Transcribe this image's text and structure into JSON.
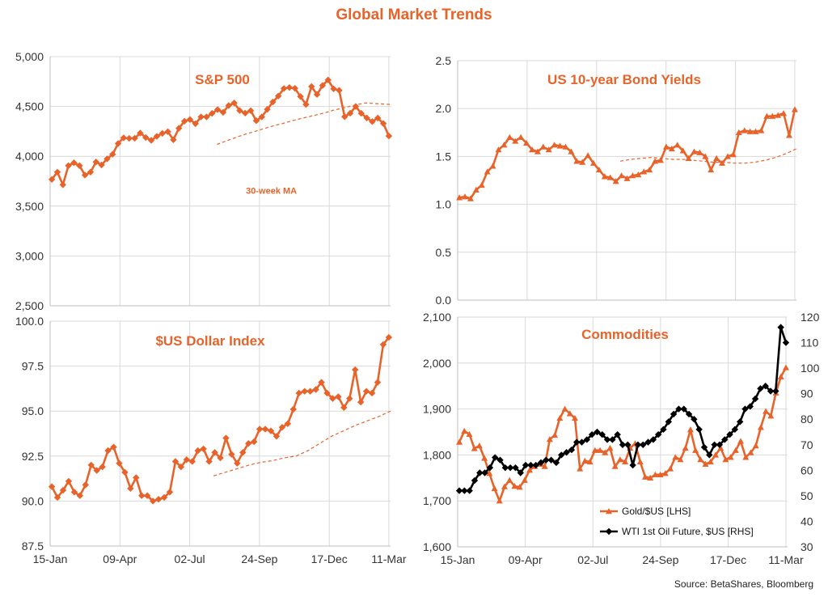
{
  "title": "Global Market Trends",
  "source": "Source: BetaShares, Bloomberg",
  "colors": {
    "accent": "#E8632A",
    "black": "#000000",
    "grid": "#d9d9d9"
  },
  "chart_data": [
    {
      "id": "sp500",
      "type": "line",
      "title": "S&P 500",
      "annotation": "30-week MA",
      "x_ticks": [
        "15-Jan",
        "09-Apr",
        "02-Jul",
        "24-Sep",
        "17-Dec",
        "11-Mar"
      ],
      "ylim": [
        2500,
        5000
      ],
      "y_ticks": [
        2500,
        3000,
        3500,
        4000,
        4500,
        5000
      ],
      "y_tick_labels": [
        "2,500",
        "3,000",
        "3,500",
        "4,000",
        "4,500",
        "5,000"
      ],
      "series": [
        {
          "name": "S&P 500",
          "style": "marker-diamond",
          "values": [
            3768,
            3841,
            3714,
            3906,
            3935,
            3906,
            3811,
            3841,
            3943,
            3913,
            3974,
            4020,
            4128,
            4185,
            4180,
            4181,
            4233,
            4188,
            4160,
            4200,
            4230,
            4247,
            4166,
            4281,
            4352,
            4369,
            4327,
            4395,
            4395,
            4430,
            4468,
            4441,
            4509,
            4535,
            4459,
            4433,
            4458,
            4357,
            4395,
            4471,
            4545,
            4605,
            4680,
            4690,
            4682,
            4600,
            4520,
            4700,
            4620,
            4710,
            4766,
            4677,
            4662,
            4397,
            4432,
            4500,
            4431,
            4385,
            4348,
            4384,
            4329,
            4204
          ]
        },
        {
          "name": "30-week MA",
          "style": "dashed",
          "values": [
            4120,
            4150,
            4180,
            4210,
            4235,
            4260,
            4285,
            4310,
            4330,
            4355,
            4375,
            4395,
            4415,
            4435,
            4460,
            4480,
            4500,
            4520,
            4535,
            4530,
            4525,
            4520
          ]
        }
      ]
    },
    {
      "id": "bond",
      "type": "line",
      "title": "US 10-year Bond Yields",
      "x_ticks": [
        "15-Jan",
        "09-Apr",
        "02-Jul",
        "24-Sep",
        "17-Dec",
        "11-Mar"
      ],
      "ylim": [
        0,
        2.5
      ],
      "y_ticks": [
        0,
        0.5,
        1,
        1.5,
        2,
        2.5
      ],
      "y_tick_labels": [
        "0.0",
        "0.5",
        "1.0",
        "1.5",
        "2.0",
        "2.5"
      ],
      "series": [
        {
          "name": "US 10-year Bond Yields",
          "style": "marker-triangle",
          "values": [
            1.07,
            1.08,
            1.06,
            1.15,
            1.2,
            1.34,
            1.4,
            1.57,
            1.62,
            1.7,
            1.66,
            1.7,
            1.64,
            1.57,
            1.55,
            1.6,
            1.57,
            1.62,
            1.61,
            1.6,
            1.55,
            1.45,
            1.44,
            1.51,
            1.43,
            1.36,
            1.29,
            1.28,
            1.24,
            1.3,
            1.27,
            1.3,
            1.31,
            1.34,
            1.36,
            1.45,
            1.46,
            1.6,
            1.58,
            1.62,
            1.56,
            1.48,
            1.55,
            1.54,
            1.5,
            1.36,
            1.48,
            1.43,
            1.5,
            1.52,
            1.75,
            1.77,
            1.76,
            1.76,
            1.77,
            1.92,
            1.92,
            1.93,
            1.95,
            1.72,
            1.99
          ]
        },
        {
          "name": "30-week MA",
          "style": "dashed",
          "values": [
            1.45,
            1.47,
            1.48,
            1.49,
            1.48,
            1.47,
            1.47,
            1.46,
            1.45,
            1.44,
            1.44,
            1.43,
            1.43,
            1.44,
            1.46,
            1.49,
            1.53,
            1.58
          ]
        }
      ]
    },
    {
      "id": "usd",
      "type": "line",
      "title": "$US Dollar Index",
      "x_ticks": [
        "15-Jan",
        "09-Apr",
        "02-Jul",
        "24-Sep",
        "17-Dec",
        "11-Mar"
      ],
      "ylim": [
        87.5,
        100
      ],
      "y_ticks": [
        87.5,
        90,
        92.5,
        95,
        97.5,
        100
      ],
      "y_tick_labels": [
        "87.5",
        "90.0",
        "92.5",
        "95.0",
        "97.5",
        "100.0"
      ],
      "series": [
        {
          "name": "$US Dollar Index",
          "style": "marker-diamond",
          "values": [
            90.8,
            90.2,
            90.6,
            91.1,
            90.5,
            90.3,
            90.9,
            92.0,
            91.7,
            91.9,
            92.8,
            93.0,
            92.1,
            91.6,
            90.7,
            91.3,
            90.3,
            90.3,
            90.0,
            90.1,
            90.2,
            90.5,
            92.2,
            91.9,
            92.3,
            92.2,
            92.8,
            92.9,
            92.2,
            92.7,
            92.4,
            93.5,
            92.6,
            92.1,
            92.7,
            93.2,
            93.3,
            94.0,
            94.0,
            93.9,
            93.6,
            94.1,
            94.3,
            95.1,
            96.0,
            96.1,
            96.1,
            96.2,
            96.6,
            96.0,
            95.7,
            95.8,
            95.2,
            95.7,
            97.3,
            95.5,
            96.1,
            96.0,
            96.6,
            98.7,
            99.1
          ]
        },
        {
          "name": "30-week MA",
          "style": "dashed",
          "values": [
            91.4,
            91.6,
            91.8,
            92.0,
            92.15,
            92.25,
            92.4,
            92.5,
            92.8,
            93.2,
            93.6,
            93.9,
            94.2,
            94.45,
            94.7,
            95.0
          ]
        }
      ]
    },
    {
      "id": "commodities",
      "type": "line",
      "title": "Commodities",
      "x_ticks": [
        "15-Jan",
        "09-Apr",
        "02-Jul",
        "24-Sep",
        "17-Dec",
        "11-Mar"
      ],
      "ylim": [
        1600,
        2100
      ],
      "y_ticks": [
        1600,
        1700,
        1800,
        1900,
        2000,
        2100
      ],
      "y_tick_labels": [
        "1,600",
        "1,700",
        "1,800",
        "1,900",
        "2,000",
        "2,100"
      ],
      "y2lim": [
        30,
        120
      ],
      "y2_ticks": [
        30,
        40,
        50,
        60,
        70,
        80,
        90,
        100,
        110,
        120
      ],
      "y2_tick_labels": [
        "30",
        "40",
        "50",
        "60",
        "70",
        "80",
        "90",
        "100",
        "110",
        "120"
      ],
      "series": [
        {
          "name": "Gold/$US [LHS]",
          "axis": "left",
          "style": "marker-triangle",
          "values": [
            1828,
            1852,
            1845,
            1814,
            1820,
            1793,
            1760,
            1727,
            1700,
            1731,
            1745,
            1732,
            1730,
            1745,
            1767,
            1775,
            1780,
            1775,
            1834,
            1843,
            1880,
            1900,
            1890,
            1880,
            1770,
            1787,
            1785,
            1810,
            1810,
            1805,
            1815,
            1775,
            1790,
            1785,
            1815,
            1825,
            1785,
            1752,
            1750,
            1757,
            1757,
            1760,
            1770,
            1795,
            1790,
            1815,
            1855,
            1810,
            1790,
            1780,
            1785,
            1800,
            1815,
            1790,
            1795,
            1810,
            1830,
            1795,
            1805,
            1820,
            1860,
            1895,
            1885,
            1935,
            1970,
            1990
          ]
        },
        {
          "name": "WTI 1st Oil Future, $US [RHS]",
          "axis": "right",
          "style": "marker-diamond",
          "values": [
            52,
            52,
            52,
            56,
            59,
            59,
            61,
            65,
            64,
            61,
            61,
            61,
            59,
            62,
            62,
            62,
            63,
            64,
            64,
            63,
            66,
            67,
            68,
            71,
            71,
            72,
            74,
            75,
            74,
            72,
            72,
            74,
            70,
            70,
            62,
            70,
            70,
            71,
            72,
            74,
            76,
            79,
            82,
            84,
            84,
            82,
            80,
            76,
            69,
            66,
            70,
            70,
            72,
            74,
            76,
            79,
            84,
            85,
            88,
            92,
            93,
            91,
            91,
            116,
            110
          ]
        }
      ]
    }
  ]
}
